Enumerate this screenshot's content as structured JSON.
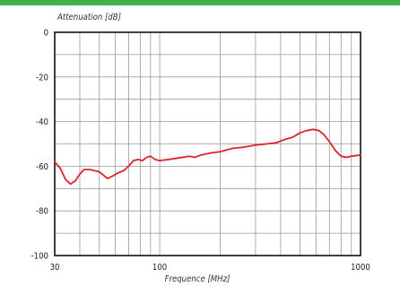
{
  "colors": {
    "top_band": "#3fb34a",
    "grid": "#9a9a9a",
    "frame": "#111111",
    "curve": "#e0222b",
    "background": "#ffffff"
  },
  "chart_data": {
    "type": "line",
    "title": "",
    "xlabel": "Frequence [MHz]",
    "ylabel": "Attenuation [dB]",
    "x_scale": "log",
    "xlim": [
      30,
      1000
    ],
    "ylim": [
      -100,
      0
    ],
    "x_ticks": [
      {
        "value": 30,
        "label": "30"
      },
      {
        "value": 100,
        "label": "100"
      },
      {
        "value": 1000,
        "label": "1000"
      }
    ],
    "y_ticks": [
      {
        "value": 0,
        "label": "0"
      },
      {
        "value": -20,
        "label": "-20"
      },
      {
        "value": -40,
        "label": "-40"
      },
      {
        "value": -60,
        "label": "-60"
      },
      {
        "value": -80,
        "label": "-80"
      },
      {
        "value": -100,
        "label": "-100"
      }
    ],
    "x_grid": [
      30,
      40,
      50,
      60,
      70,
      80,
      90,
      100,
      200,
      300,
      400,
      500,
      600,
      700,
      800,
      900,
      1000
    ],
    "y_grid": [
      0,
      -10,
      -20,
      -30,
      -40,
      -50,
      -60,
      -70,
      -80,
      -90,
      -100
    ],
    "grid": true,
    "legend": "none",
    "series": [
      {
        "x": [
          30,
          32,
          34,
          36,
          38,
          40,
          42,
          45,
          50,
          55,
          58,
          62,
          66,
          70,
          74,
          78,
          82,
          86,
          90,
          95,
          100,
          110,
          120,
          130,
          140,
          150,
          160,
          180,
          200,
          230,
          260,
          300,
          340,
          380,
          420,
          460,
          500,
          540,
          580,
          620,
          660,
          700,
          750,
          800,
          850,
          900,
          1000
        ],
        "y": [
          -58,
          -61,
          -66,
          -68,
          -66.5,
          -63.5,
          -61.5,
          -61.5,
          -62.5,
          -65.5,
          -64.5,
          -63,
          -62,
          -60,
          -57.5,
          -57,
          -57.5,
          -56,
          -55.5,
          -57,
          -57.5,
          -57,
          -56.5,
          -56,
          -55.5,
          -56,
          -55,
          -54,
          -53.5,
          -52,
          -51.5,
          -50.5,
          -50,
          -49.5,
          -48,
          -47,
          -45,
          -44,
          -43.5,
          -44,
          -46,
          -49,
          -53,
          -55.5,
          -56,
          -55.5,
          -55
        ]
      }
    ]
  }
}
